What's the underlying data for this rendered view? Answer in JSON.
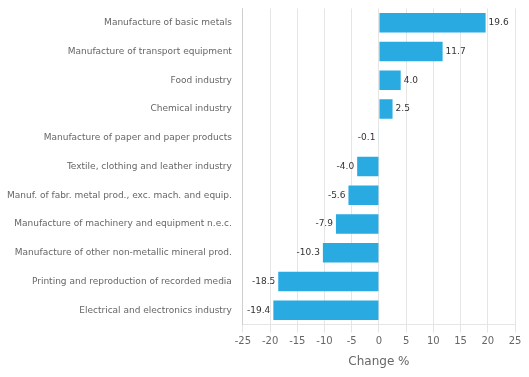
{
  "chart_data": {
    "type": "bar",
    "orientation": "horizontal",
    "categories": [
      "Electrical and electronics industry",
      "Printing and reproduction of recorded media",
      "Manufacture of other non-metallic mineral prod.",
      "Manufacture of machinery and equipment n.e.c.",
      "Manuf. of fabr. metal prod., exc. mach. and equip.",
      "Textile, clothing and leather industry",
      "Manufacture of paper and paper products",
      "Chemical industry",
      "Food industry",
      "Manufacture of transport equipment",
      "Manufacture of basic metals"
    ],
    "values": [
      -19.4,
      -18.5,
      -10.3,
      -7.9,
      -5.6,
      -4.0,
      -0.1,
      2.5,
      4.0,
      11.7,
      19.6
    ],
    "value_labels": [
      "-19.4",
      "-18.5",
      "-10.3",
      "-7.9",
      "-5.6",
      "-4.0",
      "-0.1",
      "2.5",
      "4.0",
      "11.7",
      "19.6"
    ],
    "data_labels": true,
    "color": "#29abe2",
    "xlabel": "Change %",
    "xlim": [
      -25,
      25
    ],
    "xticks": [
      -25,
      -20,
      -15,
      -10,
      -5,
      0,
      5,
      10,
      15,
      20,
      25
    ],
    "grid": true
  }
}
